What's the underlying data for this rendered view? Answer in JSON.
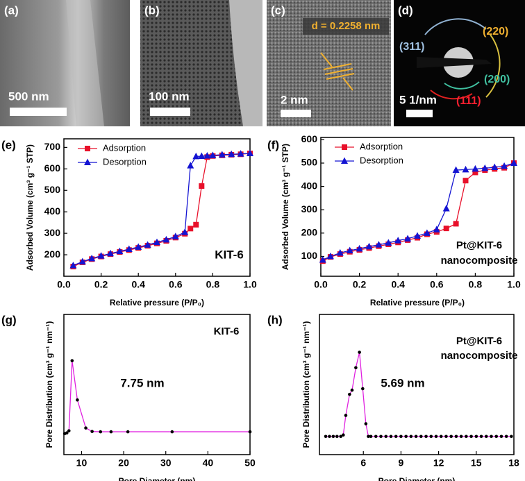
{
  "panels": [
    {
      "label": "(a)",
      "scale_bar": "500 nm"
    },
    {
      "label": "(b)",
      "scale_bar": "100 nm"
    },
    {
      "label": "(c)",
      "scale_bar": "2 nm",
      "d_spacing": "d = 0.2258 nm"
    },
    {
      "label": "(d)",
      "scale_bar": "5 1/nm",
      "rings": [
        "(220)",
        "(311)",
        "(200)",
        "(111)"
      ]
    }
  ],
  "chart_data": [
    {
      "type": "line",
      "panel_label": "(e)",
      "xlabel": "Relative pressure (P/P₀)",
      "ylabel": "Adsorbed Volume (cm³ g⁻¹ STP)",
      "x": [
        0.05,
        0.1,
        0.15,
        0.2,
        0.25,
        0.3,
        0.35,
        0.4,
        0.45,
        0.5,
        0.55,
        0.6,
        0.65,
        0.68,
        0.71,
        0.74,
        0.77,
        0.8,
        0.85,
        0.9,
        0.95,
        1.0
      ],
      "xlim": [
        0,
        1.0
      ],
      "xticks": [
        {
          "value": 0,
          "label": "0.0"
        },
        {
          "value": 0.2,
          "label": "0.2"
        },
        {
          "value": 0.4,
          "label": "0.4"
        },
        {
          "value": 0.6,
          "label": "0.6"
        },
        {
          "value": 0.8,
          "label": "0.8"
        },
        {
          "value": 1.0,
          "label": "1.0"
        }
      ],
      "ylim": [
        100,
        740
      ],
      "yticks": [
        200,
        300,
        400,
        500,
        600,
        700
      ],
      "series": [
        {
          "name": "Adsorption",
          "color": "#e8102a",
          "marker": "square",
          "values": [
            145,
            165,
            180,
            192,
            203,
            213,
            222,
            232,
            242,
            253,
            265,
            280,
            298,
            322,
            340,
            520,
            655,
            660,
            663,
            666,
            668,
            672
          ]
        },
        {
          "name": "Desorption",
          "color": "#1414d2",
          "marker": "triangle",
          "values": [
            150,
            168,
            183,
            195,
            206,
            216,
            226,
            236,
            246,
            258,
            270,
            285,
            305,
            615,
            658,
            659,
            661,
            663,
            666,
            668,
            670,
            672
          ]
        }
      ],
      "legend": "upper left",
      "annotations": [
        "KIT-6"
      ]
    },
    {
      "type": "line",
      "panel_label": "(f)",
      "xlabel": "Relative pressure (P/P₀)",
      "ylabel": "Adsorbed Volume (cm³ g⁻¹ STP)",
      "x": [
        0.01,
        0.05,
        0.1,
        0.15,
        0.2,
        0.25,
        0.3,
        0.35,
        0.4,
        0.45,
        0.5,
        0.55,
        0.6,
        0.65,
        0.7,
        0.75,
        0.8,
        0.85,
        0.9,
        0.95,
        1.0
      ],
      "xlim": [
        0,
        1.0
      ],
      "xticks": [
        {
          "value": 0,
          "label": "0.0"
        },
        {
          "value": 0.2,
          "label": "0.2"
        },
        {
          "value": 0.4,
          "label": "0.4"
        },
        {
          "value": 0.6,
          "label": "0.6"
        },
        {
          "value": 0.8,
          "label": "0.8"
        },
        {
          "value": 1.0,
          "label": "1.0"
        }
      ],
      "ylim": [
        15,
        610
      ],
      "yticks": [
        100,
        200,
        300,
        400,
        500,
        600
      ],
      "series": [
        {
          "name": "Adsorption",
          "color": "#e8102a",
          "marker": "square",
          "values": [
            80,
            98,
            110,
            120,
            128,
            136,
            144,
            152,
            160,
            170,
            180,
            195,
            205,
            220,
            240,
            425,
            460,
            470,
            475,
            480,
            500
          ]
        },
        {
          "name": "Desorption",
          "color": "#1414d2",
          "marker": "triangle",
          "values": [
            85,
            100,
            115,
            125,
            133,
            142,
            150,
            158,
            168,
            176,
            188,
            200,
            215,
            305,
            470,
            472,
            475,
            478,
            482,
            487,
            500
          ]
        }
      ],
      "legend": "upper left",
      "annotations": [
        "Pt@KIT-6",
        "nanocomposite"
      ]
    },
    {
      "type": "line",
      "panel_label": "(g)",
      "xlabel": "Pore Diameter (nm)",
      "ylabel": "Pore Distribution (cm³ g⁻¹ nm⁻¹)",
      "x": [
        6.0,
        6.5,
        7.0,
        7.75,
        9.0,
        11.0,
        12.5,
        14.5,
        17.0,
        21.0,
        31.5,
        50
      ],
      "xlim": [
        5.8,
        50
      ],
      "xticks": [
        10,
        20,
        30,
        40,
        50
      ],
      "ylim": [
        0,
        1
      ],
      "series": [
        {
          "color": "#e020e0",
          "marker": "circle",
          "marker_color": "#000000",
          "values": [
            0.15,
            0.155,
            0.17,
            0.67,
            0.39,
            0.19,
            0.165,
            0.163,
            0.163,
            0.163,
            0.163,
            0.163
          ]
        }
      ],
      "annotations": [
        "KIT-6",
        "7.75 nm"
      ]
    },
    {
      "type": "line",
      "panel_label": "(h)",
      "xlabel": "Pore Diameter (nm)",
      "ylabel": "Pore Distribution (cm³ g⁻¹ nm⁻¹)",
      "x": [
        3.0,
        3.3,
        3.6,
        3.9,
        4.2,
        4.4,
        4.6,
        4.9,
        5.1,
        5.4,
        5.69,
        5.95,
        6.2,
        6.4,
        6.6,
        7.0,
        7.4,
        7.8,
        8.2,
        8.6,
        9.0,
        9.4,
        9.8,
        10.2,
        10.6,
        11.0,
        11.4,
        11.8,
        12.2,
        12.6,
        13.0,
        13.4,
        13.8,
        14.2,
        14.6,
        15.0,
        15.4,
        15.8,
        16.2,
        16.6,
        17.0,
        17.4,
        17.8
      ],
      "xlim": [
        2.5,
        18
      ],
      "xticks": [
        6,
        9,
        12,
        15,
        18
      ],
      "ylim": [
        0,
        1
      ],
      "series": [
        {
          "color": "#e020e0",
          "marker": "circle",
          "marker_color": "#000000",
          "values": [
            0.13,
            0.13,
            0.13,
            0.13,
            0.13,
            0.14,
            0.28,
            0.43,
            0.46,
            0.62,
            0.73,
            0.47,
            0.22,
            0.13,
            0.13,
            0.13,
            0.13,
            0.13,
            0.13,
            0.13,
            0.13,
            0.13,
            0.13,
            0.13,
            0.13,
            0.13,
            0.13,
            0.13,
            0.13,
            0.13,
            0.13,
            0.13,
            0.13,
            0.13,
            0.13,
            0.13,
            0.13,
            0.13,
            0.13,
            0.13,
            0.13,
            0.13,
            0.13
          ]
        }
      ],
      "annotations": [
        "Pt@KIT-6",
        "nanocomposite",
        "5.69 nm"
      ]
    }
  ]
}
